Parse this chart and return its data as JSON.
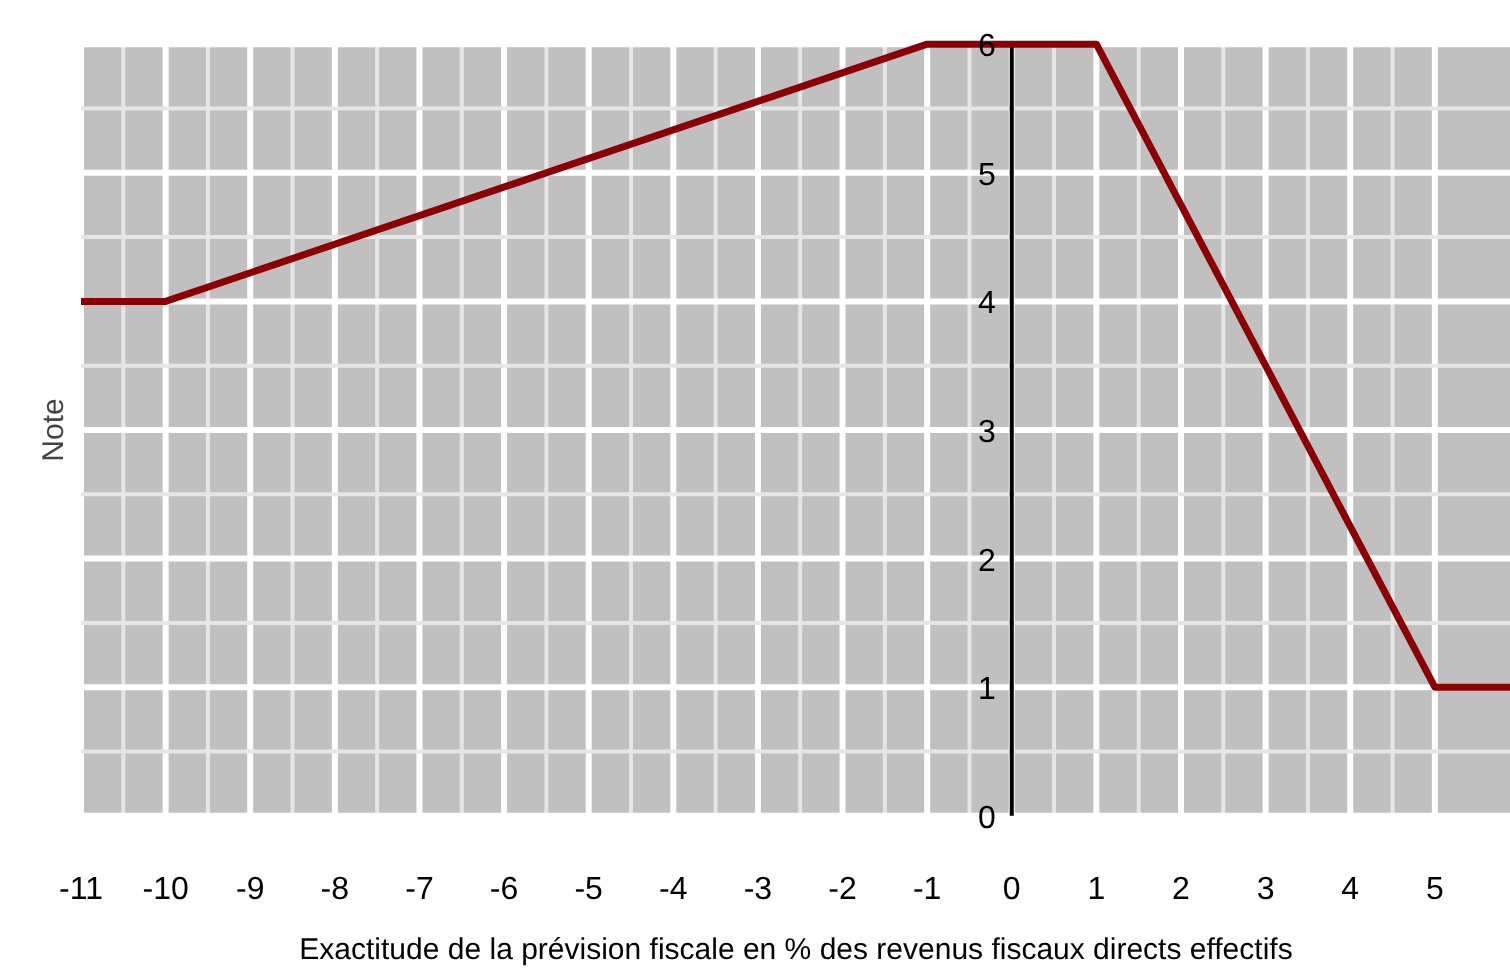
{
  "chart_data": {
    "type": "line",
    "xlabel": "Exactitude de la prévision fiscale en % des revenus fiscaux directs effectifs",
    "ylabel": "Note",
    "x": [
      -11,
      -10,
      -1,
      1,
      5,
      5.9
    ],
    "series": [
      {
        "color": "#8b0000",
        "values": [
          4,
          4,
          6,
          6,
          1,
          1
        ]
      }
    ],
    "xlim": [
      -11,
      5.9
    ],
    "ylim": [
      0,
      6
    ],
    "xticks": [
      -11,
      -10,
      -9,
      -8,
      -7,
      -6,
      -5,
      -4,
      -3,
      -2,
      -1,
      0,
      1,
      2,
      3,
      4,
      5
    ],
    "yticks": [
      0,
      1,
      2,
      3,
      4,
      5,
      6
    ],
    "grid": true,
    "marker": "none",
    "line_style": "solid"
  }
}
